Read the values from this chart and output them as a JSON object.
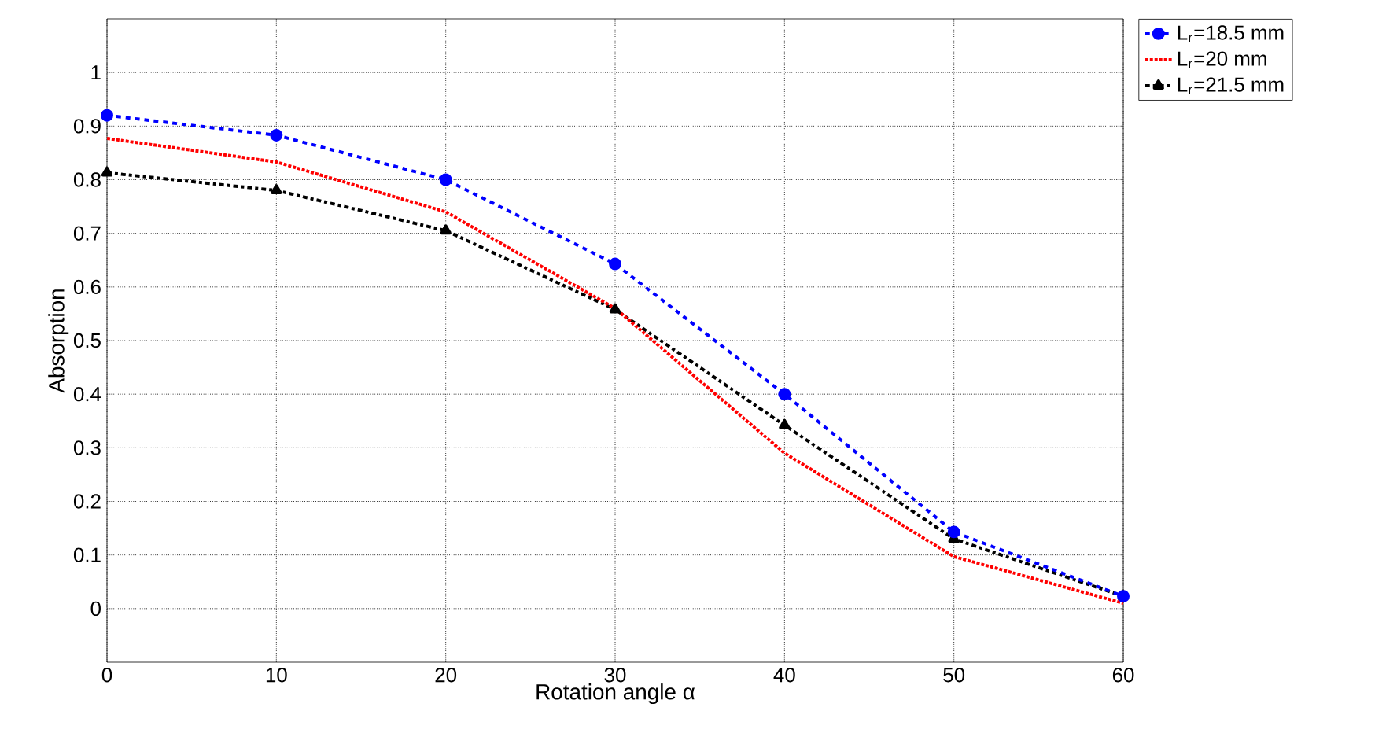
{
  "chart_data": {
    "type": "line",
    "xlabel": "Rotation angle α",
    "ylabel": "Absorption",
    "x": [
      0,
      10,
      20,
      30,
      40,
      50,
      60
    ],
    "series": [
      {
        "name": "L$_{r}$=18.5 mm",
        "color": "#0000ff",
        "marker": "circle",
        "line_style": "dashed",
        "values": [
          0.92,
          0.883,
          0.8,
          0.643,
          0.4,
          0.143,
          0.023
        ]
      },
      {
        "name": "L$_{r}$=20 mm",
        "color": "#ff0000",
        "marker": "none",
        "line_style": "dotted",
        "values": [
          0.877,
          0.833,
          0.74,
          0.56,
          0.29,
          0.097,
          0.01
        ]
      },
      {
        "name": "L$_{r}$=21.5 mm",
        "color": "#000000",
        "marker": "triangle",
        "line_style": "dashdot",
        "values": [
          0.813,
          0.78,
          0.705,
          0.558,
          0.342,
          0.13,
          0.023
        ]
      }
    ],
    "xlim": [
      0,
      60
    ],
    "ylim": [
      -0.1,
      1.1
    ],
    "xticks": [
      0,
      10,
      20,
      30,
      40,
      50,
      60
    ],
    "yticks": [
      0,
      0.1,
      0.2,
      0.3,
      0.4,
      0.5,
      0.6,
      0.7,
      0.8,
      0.9,
      1
    ],
    "grid": true,
    "legend": "top right"
  }
}
